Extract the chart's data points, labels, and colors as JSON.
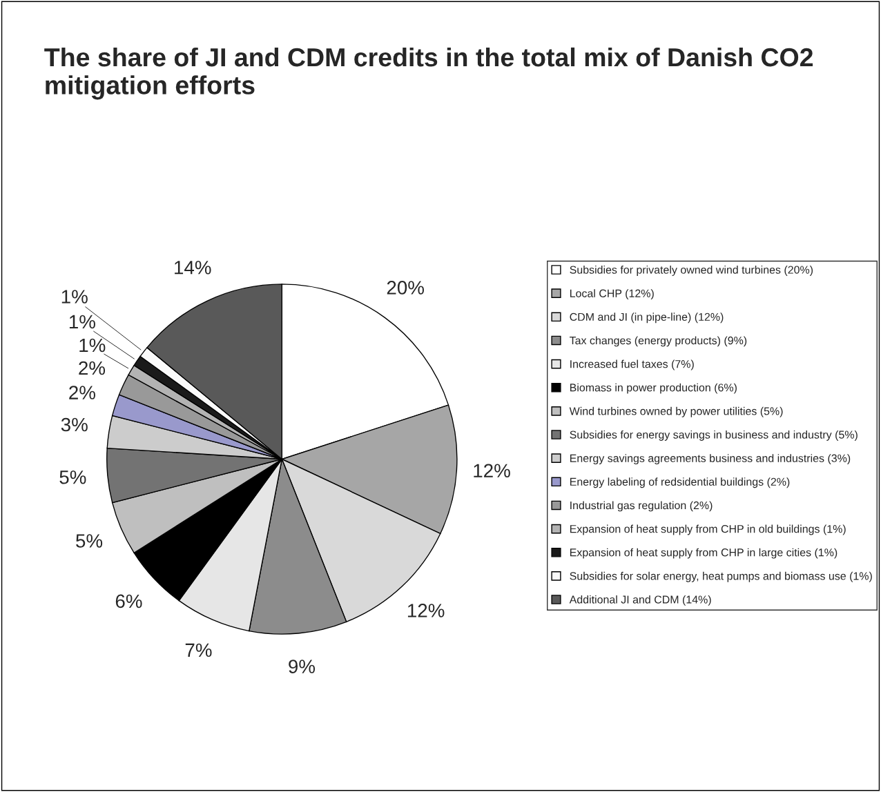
{
  "chart_data": {
    "type": "pie",
    "title": "The share of JI and CDM credits in the total mix of Danish CO2 mitigation efforts",
    "categories": [
      "Subsidies for privately owned wind turbines (20%)",
      "Local CHP (12%)",
      "CDM and JI (in pipe-line) (12%)",
      "Tax changes (energy products) (9%)",
      "Increased fuel taxes (7%)",
      "Biomass in power production (6%)",
      "Wind turbines owned by power utilities (5%)",
      "Subsidies for energy savings in business and industry (5%)",
      "Energy savings agreements business and industries (3%)",
      "Energy labeling of redsidential buildings (2%)",
      "Industrial gas regulation (2%)",
      "Expansion of heat supply from CHP in old buildings (1%)",
      "Expansion of heat supply from CHP in large cities (1%)",
      "Subsidies for solar energy, heat pumps and biomass use (1%)",
      "Additional JI and CDM (14%)"
    ],
    "values": [
      20,
      12,
      12,
      9,
      7,
      6,
      5,
      5,
      3,
      2,
      2,
      1,
      1,
      1,
      14
    ],
    "value_labels": [
      "20%",
      "12%",
      "12%",
      "9%",
      "7%",
      "6%",
      "5%",
      "5%",
      "3%",
      "2%",
      "2%",
      "1%",
      "1%",
      "1%",
      "14%"
    ],
    "colors": [
      "#ffffff",
      "#a6a6a6",
      "#d9d9d9",
      "#8c8c8c",
      "#e6e6e6",
      "#000000",
      "#bfbfbf",
      "#737373",
      "#cccccc",
      "#9999cc",
      "#999999",
      "#b3b3b3",
      "#1a1a1a",
      "#fafafa",
      "#595959"
    ],
    "legend": "right"
  }
}
